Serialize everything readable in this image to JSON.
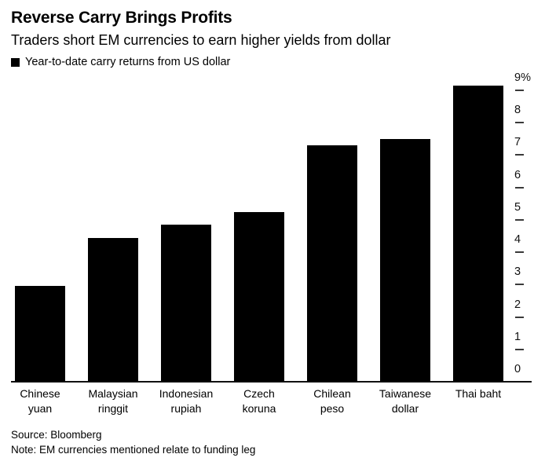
{
  "header": {
    "title": "Reverse Carry Brings Profits",
    "subtitle": "Traders short EM currencies to earn higher yields from dollar"
  },
  "legend": {
    "label": "Year-to-date carry returns from US dollar",
    "swatch_color": "#000000"
  },
  "chart_data": {
    "type": "bar",
    "categories": [
      "Chinese yuan",
      "Malaysian ringgit",
      "Indonesian rupiah",
      "Czech koruna",
      "Chilean peso",
      "Taiwanese dollar",
      "Thai baht"
    ],
    "category_lines": [
      [
        "Chinese",
        "yuan"
      ],
      [
        "Malaysian",
        "ringgit"
      ],
      [
        "Indonesian",
        "rupiah"
      ],
      [
        "Czech",
        "koruna"
      ],
      [
        "Chilean",
        "peso"
      ],
      [
        "Taiwanese",
        "dollar"
      ],
      [
        "Thai baht"
      ]
    ],
    "values": [
      2.95,
      4.45,
      4.85,
      5.25,
      7.3,
      7.5,
      9.15
    ],
    "unit": "%",
    "title": "Year-to-date carry returns from US dollar",
    "xlabel": "",
    "ylabel": "",
    "ylim": [
      0,
      9.3
    ],
    "yticks": [
      0,
      1,
      2,
      3,
      4,
      5,
      6,
      7,
      8,
      9
    ],
    "ytick_labels": [
      "0",
      "1",
      "2",
      "3",
      "4",
      "5",
      "6",
      "7",
      "8",
      "9%"
    ],
    "bar_color": "#000000",
    "axis_side": "right",
    "grid": false,
    "legend_position": "top-left"
  },
  "footer": {
    "source": "Source: Bloomberg",
    "note": "Note: EM currencies mentioned relate to funding leg"
  }
}
